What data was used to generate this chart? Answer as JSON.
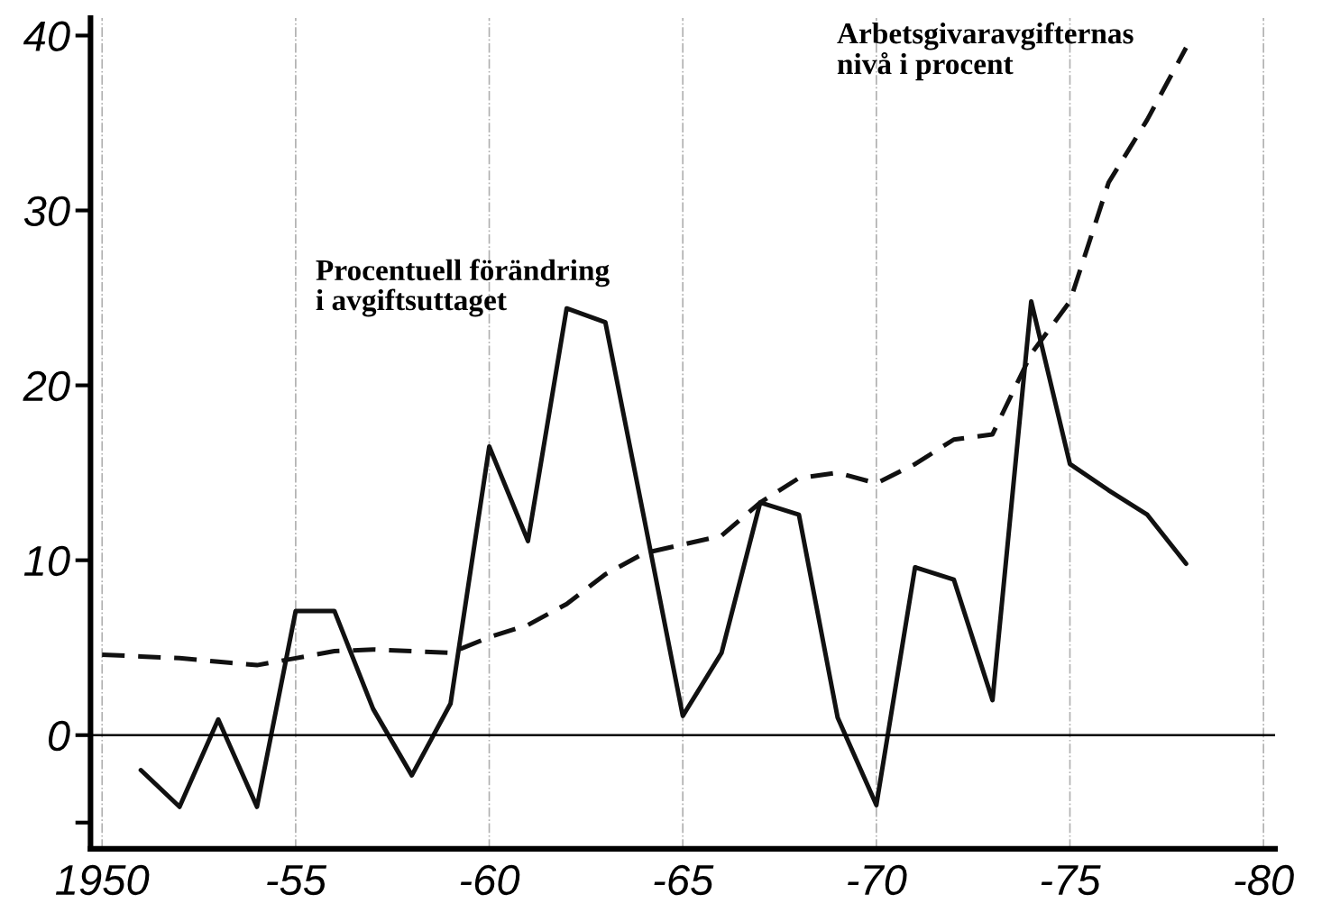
{
  "chart_data": {
    "type": "line",
    "ylim": [
      -6.5,
      41
    ],
    "categories": [
      "1950",
      null,
      null,
      null,
      null,
      "-55",
      null,
      null,
      null,
      null,
      "-60",
      null,
      null,
      null,
      null,
      "-65",
      null,
      null,
      null,
      null,
      "-70",
      null,
      null,
      null,
      null,
      "-75",
      null,
      null,
      null,
      null,
      "-80"
    ],
    "yticks": [
      {
        "value": -5,
        "label": null
      },
      0,
      10,
      20,
      30,
      40
    ],
    "grid": "x",
    "legend": false,
    "marker": "none",
    "ref_lines": [
      {
        "axis": "y",
        "value": 0,
        "color": "#000000",
        "line_style": "solid"
      }
    ],
    "series": [
      {
        "color": "#111111",
        "line_style": "solid",
        "values": [
          null,
          -2.0,
          -4.1,
          0.9,
          -4.1,
          7.1,
          7.1,
          1.5,
          -2.3,
          1.8,
          16.5,
          11.1,
          24.4,
          23.6,
          12.4,
          1.1,
          4.7,
          13.3,
          12.6,
          1.0,
          -4.0,
          9.6,
          8.9,
          2.0,
          24.8,
          15.5,
          14.0,
          12.6,
          9.8,
          null,
          null
        ]
      },
      {
        "color": "#111111",
        "line_style": "dashed",
        "values": [
          4.6,
          4.5,
          4.4,
          4.2,
          4.0,
          4.4,
          4.8,
          4.9,
          4.8,
          4.7,
          5.6,
          6.3,
          7.5,
          9.2,
          10.4,
          10.9,
          11.4,
          13.3,
          14.7,
          15.0,
          14.4,
          15.5,
          16.9,
          17.2,
          21.8,
          24.8,
          31.6,
          35.2,
          39.3,
          null,
          null
        ]
      }
    ],
    "annotations": [
      "Procentuell förändring\ni avgiftsuttaget",
      "Arbetsgivaravgifternas\nnivå i procent"
    ]
  }
}
